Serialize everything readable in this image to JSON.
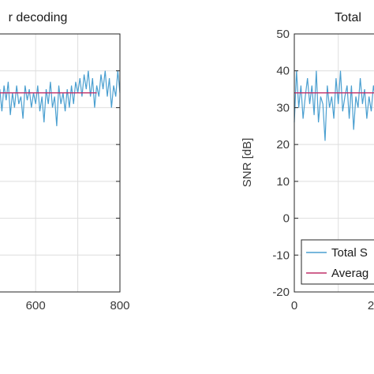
{
  "chart_data": [
    {
      "type": "line",
      "title": "r decoding",
      "xlim": [
        493,
        800
      ],
      "ylim": [
        -20,
        50
      ],
      "xticks": [
        600,
        800
      ],
      "grid": true,
      "series": [
        {
          "color": "#4a9fd0",
          "x": [
            493,
            500,
            505,
            510,
            515,
            520,
            525,
            530,
            535,
            540,
            545,
            550,
            555,
            560,
            565,
            570,
            575,
            580,
            585,
            590,
            595,
            600,
            605,
            610,
            615,
            620,
            625,
            630,
            635,
            640,
            645,
            650,
            655,
            660,
            665,
            670,
            675,
            680,
            685,
            690,
            695,
            700,
            705,
            710,
            715,
            720,
            725,
            730,
            735,
            740,
            745,
            750,
            755,
            760,
            765,
            770,
            775,
            780,
            785,
            790,
            795,
            800
          ],
          "y": [
            38,
            30,
            37,
            31,
            35,
            29,
            36,
            32,
            37,
            28,
            34,
            30,
            36,
            31,
            33,
            27,
            36,
            32,
            35,
            30,
            34,
            31,
            36,
            29,
            33,
            26,
            35,
            31,
            37,
            30,
            33,
            25,
            36,
            31,
            34,
            29,
            35,
            30,
            36,
            31,
            37,
            34,
            38,
            33,
            39,
            35,
            40,
            33,
            38,
            30,
            36,
            33,
            39,
            35,
            40,
            33,
            38,
            30,
            36,
            33,
            40,
            34
          ]
        },
        {
          "color": "#c0306a",
          "x": [
            493,
            745
          ],
          "y": [
            34,
            34
          ]
        }
      ]
    },
    {
      "type": "line",
      "title": "Total",
      "xlim": [
        0,
        210
      ],
      "ylim": [
        -20,
        50
      ],
      "ylabel": "SNR [dB]",
      "xticks": [
        0
      ],
      "xtick_partial": "2",
      "yticks": [
        50,
        40,
        30,
        20,
        10,
        0,
        -10,
        -20
      ],
      "grid": true,
      "legend": {
        "placement": "bottom-left",
        "entries": [
          {
            "label": "Total S",
            "color": "#4a9fd0"
          },
          {
            "label": "Averag",
            "color": "#c0306a"
          }
        ]
      },
      "series": [
        {
          "color": "#4a9fd0",
          "x": [
            0,
            5,
            10,
            15,
            20,
            25,
            30,
            35,
            40,
            45,
            50,
            55,
            60,
            65,
            70,
            75,
            80,
            85,
            90,
            95,
            100,
            105,
            110,
            115,
            120,
            125,
            130,
            135,
            140,
            145,
            150,
            155,
            160,
            165,
            170,
            175,
            180,
            185,
            190,
            195,
            200,
            205,
            210
          ],
          "y": [
            26,
            40,
            30,
            36,
            27,
            33,
            38,
            31,
            36,
            28,
            40,
            26,
            33,
            31,
            21,
            36,
            30,
            33,
            27,
            38,
            31,
            40,
            29,
            33,
            36,
            27,
            36,
            24,
            33,
            30,
            38,
            31,
            35,
            27,
            33,
            29,
            36,
            32,
            39,
            28,
            35,
            30,
            34
          ]
        },
        {
          "color": "#c0306a",
          "x": [
            0,
            210
          ],
          "y": [
            34,
            34
          ]
        }
      ]
    }
  ],
  "xtick_800_label": "800",
  "xtick_600_label": "600",
  "xtick_0_label": "0"
}
